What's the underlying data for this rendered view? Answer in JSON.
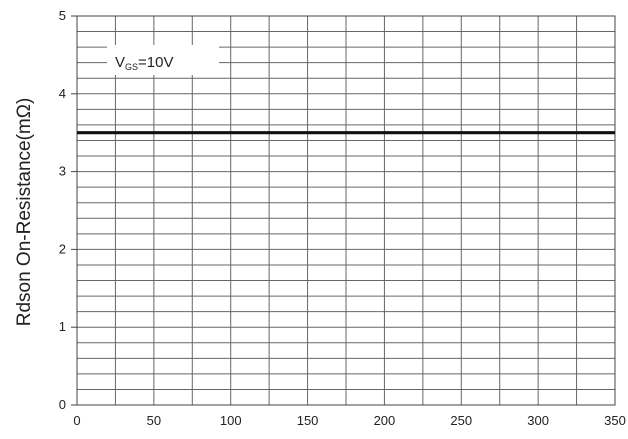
{
  "chart_data": {
    "type": "line",
    "title": "",
    "xlabel": "",
    "ylabel": "Rdson On-Resistance(mΩ)",
    "xlim": [
      0,
      350
    ],
    "ylim": [
      0,
      5
    ],
    "xticks": [
      0,
      50,
      100,
      150,
      200,
      250,
      300,
      350
    ],
    "yticks": [
      0,
      1,
      2,
      3,
      4,
      5
    ],
    "grid": true,
    "annotation": {
      "main": "V",
      "sub": "GS",
      "tail": "=10V"
    },
    "series": [
      {
        "x": [
          0,
          350
        ],
        "values": [
          3.5,
          3.5
        ]
      }
    ]
  }
}
